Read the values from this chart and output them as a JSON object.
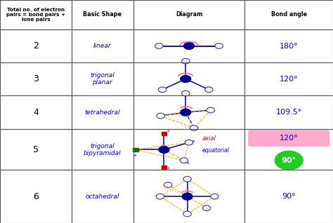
{
  "title_col1": "Total no. of electron\npairs = bond pairs +\nlone pairs",
  "title_col2": "Basic Shape",
  "title_col3": "Diagram",
  "title_col4": "Bond angle",
  "rows": [
    {
      "num": "2",
      "shape": "linear",
      "angle": "180°"
    },
    {
      "num": "3",
      "shape": "trigonal\nplanar",
      "angle": "120°"
    },
    {
      "num": "4",
      "shape": "tetrahedral",
      "angle": "109.5°"
    },
    {
      "num": "5",
      "shape": "trigonal\nbipyramidal",
      "angle": "120° / 90°"
    },
    {
      "num": "6",
      "shape": "octahedral",
      "angle": "90°"
    }
  ],
  "col_bounds": [
    0.0,
    0.215,
    0.4,
    0.735,
    1.0
  ],
  "dk_blue": "#00008B",
  "mid_blue": "#0000CD",
  "lt_blue": "#6666cc",
  "pink": "#ff69b4",
  "orange": "#FFA500",
  "green_bright": "#22cc22",
  "red_sq": "#cc0000",
  "green_sq": "#007700",
  "pink_bg": "#ffaacc",
  "axial_color": "#cc0000",
  "equatorial_color": "#0000cc"
}
